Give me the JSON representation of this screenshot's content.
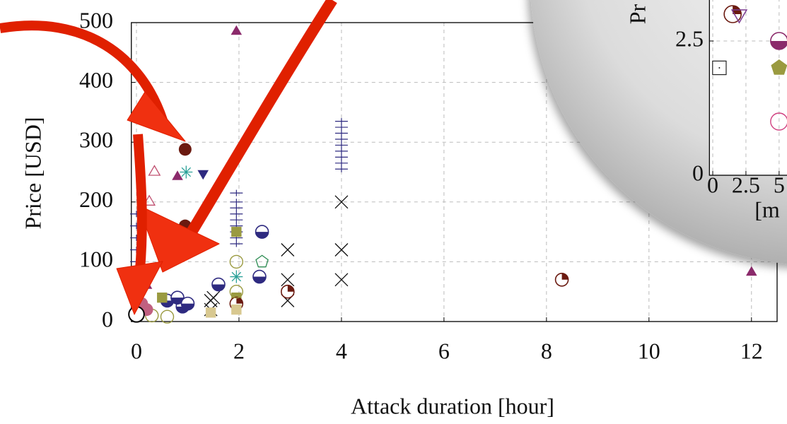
{
  "chart_data": [
    {
      "type": "scatter",
      "x_label": "Attack duration [hour]",
      "y_label": "Price [USD]",
      "xlim": [
        -0.1,
        12.5
      ],
      "ylim": [
        0,
        500
      ],
      "xticks": [
        0,
        2,
        4,
        6,
        8,
        10,
        12
      ],
      "yticks": [
        0,
        100,
        200,
        300,
        400,
        500
      ],
      "grid": true,
      "series": [
        {
          "marker": "triangle",
          "color": "#8b2a6b",
          "x": [
            1.95,
            0.8,
            12,
            0.2
          ],
          "values": [
            485,
            242,
            82,
            60
          ]
        },
        {
          "marker": "triangle-open",
          "color": "#c05070",
          "x": [
            0.35,
            0.25
          ],
          "values": [
            250,
            200
          ]
        },
        {
          "marker": "star",
          "color": "#2aa198",
          "x": [
            0.97,
            1.95
          ],
          "values": [
            250,
            75
          ]
        },
        {
          "marker": "triangle-down",
          "color": "#2e2a80",
          "x": [
            1.3
          ],
          "values": [
            248
          ]
        },
        {
          "marker": "plus",
          "color": "#2e2a80",
          "x": [
            4,
            4,
            4,
            4,
            4,
            4,
            4,
            4,
            4,
            1.95,
            1.95,
            1.95,
            1.95,
            1.95,
            1.95,
            1.95,
            1.95,
            1.95,
            0,
            0,
            0,
            0,
            0,
            0,
            0,
            0.95,
            0.95
          ],
          "values": [
            255,
            265,
            275,
            285,
            295,
            305,
            315,
            325,
            335,
            130,
            140,
            150,
            160,
            170,
            180,
            190,
            200,
            215,
            60,
            80,
            100,
            120,
            140,
            160,
            180,
            120,
            140
          ]
        },
        {
          "marker": "cross",
          "color": "#111111",
          "x": [
            4,
            4,
            4,
            2.95,
            2.95,
            2.95,
            1.45,
            1.45,
            1.5
          ],
          "values": [
            200,
            120,
            70,
            120,
            70,
            35,
            35,
            20,
            40
          ]
        },
        {
          "marker": "circle",
          "color": "#6b1a10",
          "x": [
            0.95,
            0.95,
            0
          ],
          "values": [
            288,
            160,
            45
          ]
        },
        {
          "marker": "circle-half",
          "color": "#2e2a80",
          "x": [
            2.45,
            2.4,
            1.6,
            0.6,
            0.9,
            0.8,
            1
          ],
          "values": [
            150,
            75,
            62,
            35,
            25,
            40,
            30
          ]
        },
        {
          "marker": "square",
          "color": "#9a9a40",
          "x": [
            1.95,
            1.95,
            0.5
          ],
          "values": [
            150,
            40,
            40
          ]
        },
        {
          "marker": "pentagon-open",
          "color": "#2a8a50",
          "x": [
            2.45
          ],
          "values": [
            100
          ]
        },
        {
          "marker": "circle-quarter",
          "color": "#6b1a10",
          "x": [
            8.3,
            2.95,
            1.95
          ],
          "values": [
            70,
            50,
            30
          ]
        },
        {
          "marker": "circle-open",
          "color": "#9a9a40",
          "x": [
            1.95,
            1.95,
            0.3,
            0.6,
            0.1
          ],
          "values": [
            100,
            50,
            10,
            8,
            20
          ]
        },
        {
          "marker": "circle",
          "color": "#c06080",
          "x": [
            0.1,
            0.2
          ],
          "values": [
            30,
            20
          ]
        },
        {
          "marker": "square",
          "color": "#d8c890",
          "x": [
            1.45,
            1.95
          ],
          "values": [
            15,
            20
          ]
        },
        {
          "marker": "circle-white",
          "color": "#000000",
          "x": [
            0
          ],
          "values": [
            12
          ]
        }
      ]
    },
    {
      "type": "scatter",
      "x_label": "[m",
      "y_label": "Pr",
      "xlim": [
        -0.25,
        6.5
      ],
      "ylim": [
        0,
        3.3
      ],
      "xticks": [
        0,
        2.5,
        5
      ],
      "yticks": [
        0,
        2.5
      ],
      "grid": true,
      "series": [
        {
          "marker": "circle-quarter",
          "color": "#6b1a10",
          "x": [
            1.5
          ],
          "values": [
            3.0
          ]
        },
        {
          "marker": "triangle-down-open",
          "color": "#7a3a90",
          "x": [
            2
          ],
          "values": [
            3.0
          ]
        },
        {
          "marker": "circle-half",
          "color": "#8b2a6b",
          "x": [
            5
          ],
          "values": [
            2.5
          ]
        },
        {
          "marker": "square-open",
          "color": "#222222",
          "x": [
            0.5
          ],
          "values": [
            2.0
          ]
        },
        {
          "marker": "pentagon",
          "color": "#9a9a40",
          "x": [
            5
          ],
          "values": [
            2.0
          ]
        },
        {
          "marker": "circle-open",
          "color": "#d04080",
          "x": [
            5
          ],
          "values": [
            1.0
          ]
        }
      ]
    }
  ]
}
